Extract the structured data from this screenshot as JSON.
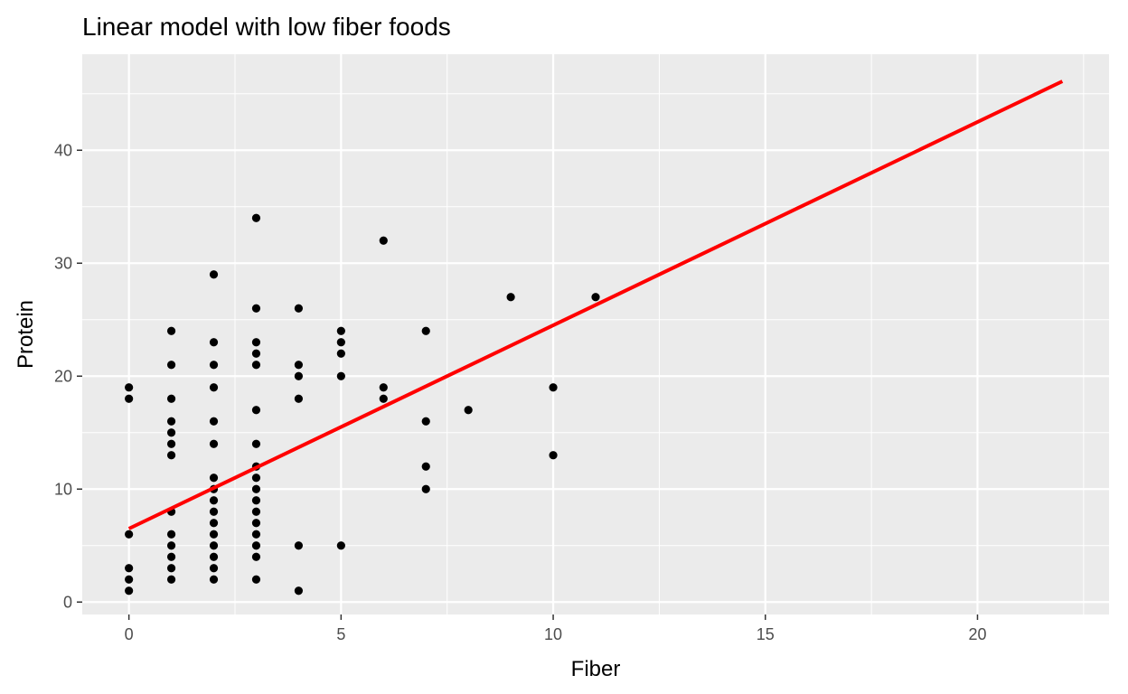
{
  "chart_data": {
    "type": "scatter",
    "title": "Linear model with low fiber foods",
    "xlabel": "Fiber",
    "ylabel": "Protein",
    "xlim": [
      -1.1,
      23.1
    ],
    "ylim": [
      -1.1,
      48.5
    ],
    "x_ticks": [
      0,
      5,
      10,
      15,
      20
    ],
    "y_ticks": [
      0,
      10,
      20,
      30,
      40
    ],
    "x_minor": [
      2.5,
      7.5,
      12.5,
      17.5,
      22.5
    ],
    "y_minor": [
      5,
      15,
      25,
      35,
      45
    ],
    "grid": true,
    "points": [
      [
        0,
        1
      ],
      [
        0,
        2
      ],
      [
        0,
        3
      ],
      [
        0,
        6
      ],
      [
        0,
        18
      ],
      [
        0,
        19
      ],
      [
        1,
        2
      ],
      [
        1,
        3
      ],
      [
        1,
        4
      ],
      [
        1,
        5
      ],
      [
        1,
        6
      ],
      [
        1,
        8
      ],
      [
        1,
        13
      ],
      [
        1,
        14
      ],
      [
        1,
        15
      ],
      [
        1,
        16
      ],
      [
        1,
        18
      ],
      [
        1,
        21
      ],
      [
        1,
        24
      ],
      [
        2,
        2
      ],
      [
        2,
        3
      ],
      [
        2,
        4
      ],
      [
        2,
        5
      ],
      [
        2,
        6
      ],
      [
        2,
        7
      ],
      [
        2,
        8
      ],
      [
        2,
        9
      ],
      [
        2,
        10
      ],
      [
        2,
        11
      ],
      [
        2,
        14
      ],
      [
        2,
        16
      ],
      [
        2,
        19
      ],
      [
        2,
        21
      ],
      [
        2,
        23
      ],
      [
        2,
        29
      ],
      [
        3,
        2
      ],
      [
        3,
        4
      ],
      [
        3,
        5
      ],
      [
        3,
        6
      ],
      [
        3,
        7
      ],
      [
        3,
        8
      ],
      [
        3,
        9
      ],
      [
        3,
        10
      ],
      [
        3,
        11
      ],
      [
        3,
        12
      ],
      [
        3,
        14
      ],
      [
        3,
        17
      ],
      [
        3,
        21
      ],
      [
        3,
        22
      ],
      [
        3,
        23
      ],
      [
        3,
        26
      ],
      [
        3,
        34
      ],
      [
        4,
        1
      ],
      [
        4,
        5
      ],
      [
        4,
        18
      ],
      [
        4,
        20
      ],
      [
        4,
        21
      ],
      [
        4,
        26
      ],
      [
        5,
        5
      ],
      [
        5,
        20
      ],
      [
        5,
        22
      ],
      [
        5,
        23
      ],
      [
        5,
        24
      ],
      [
        6,
        18
      ],
      [
        6,
        19
      ],
      [
        6,
        32
      ],
      [
        7,
        10
      ],
      [
        7,
        12
      ],
      [
        7,
        16
      ],
      [
        7,
        24
      ],
      [
        8,
        17
      ],
      [
        9,
        27
      ],
      [
        10,
        13
      ],
      [
        10,
        19
      ],
      [
        11,
        27
      ]
    ],
    "fit_line": {
      "x": [
        0,
        22
      ],
      "y": [
        6.5,
        46.1
      ],
      "color": "#ff0000"
    },
    "point_color": "#000000",
    "panel_background": "#ebebeb",
    "grid_color": "#ffffff"
  }
}
